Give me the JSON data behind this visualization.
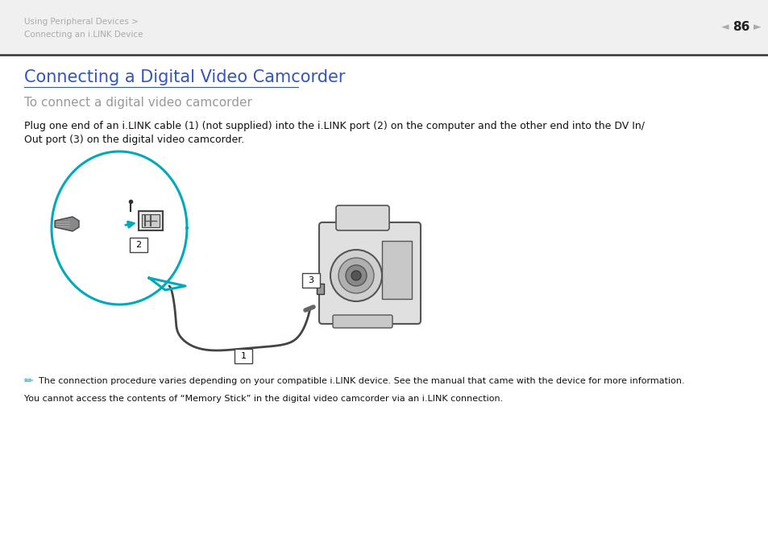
{
  "bg_color": "#ffffff",
  "header_text_line1": "Using Peripheral Devices >",
  "header_text_line2": "Connecting an i.LINK Device",
  "header_text_color": "#aaaaaa",
  "page_number": "86",
  "title": "Connecting a Digital Video Camcorder",
  "title_color": "#3355bb",
  "subtitle": "To connect a digital video camcorder",
  "subtitle_color": "#999999",
  "body_text1": "Plug one end of an i.LINK cable (1) (not supplied) into the i.LINK port (2) on the computer and the other end into the DV In/",
  "body_text2": "Out port (3) on the digital video camcorder.",
  "body_color": "#111111",
  "note_line1": "The connection procedure varies depending on your compatible i.LINK device. See the manual that came with the device for more information.",
  "note_line2": "You cannot access the contents of “Memory Stick” in the digital video camcorder via an i.LINK connection.",
  "note_color": "#111111",
  "divider_color": "#333333",
  "cyan_color": "#00aabb",
  "gray_color": "#aaaaaa"
}
